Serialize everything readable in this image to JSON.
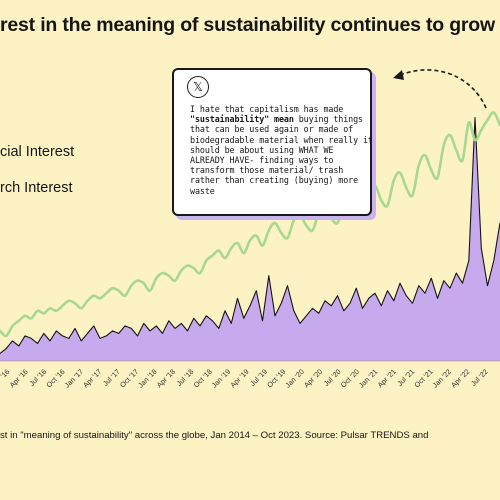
{
  "title": "rest in the meaning of sustainability continues to grow",
  "legend": {
    "social": "cial Interest",
    "search": "rch Interest"
  },
  "tweet": {
    "icon": "x-logo-icon",
    "line1": "I hate that capitalism has made",
    "bold_phrase": "\"sustainability\" mean",
    "line2_rest": " buying things",
    "line3": "that can be used again or made of",
    "line4": "biodegradable material when really it",
    "line5": "should be about using WHAT WE",
    "line6": "ALREADY HAVE- finding ways to",
    "line7": "transform those material/ trash",
    "line8": "rather than creating (buying) more",
    "line9": "waste"
  },
  "caption": {
    "line1": "st in \"meaning of sustainability\" across the globe, Jan 2014 – Oct 2023. Source: Pulsar TRENDS and"
  },
  "colors": {
    "background": "#fdf2c4",
    "social_line": "#a6d98f",
    "search_fill": "#c6aaed",
    "search_line": "#141414"
  },
  "chart_data": {
    "type": "area",
    "xlabel": "",
    "ylabel": "",
    "x_tick_labels": [
      "'16",
      "Apr '16",
      "Jul '16",
      "Oct '16",
      "Jan '17",
      "Apr '17",
      "Jul '17",
      "Oct '17",
      "Jan '18",
      "Apr '18",
      "Jul '18",
      "Oct '18",
      "Jan '19",
      "Apr '19",
      "Jul '19",
      "Oct '19",
      "Jan '20",
      "Apr '20",
      "Jul '20",
      "Oct '20",
      "Jan '21",
      "Apr '21",
      "Jul '21",
      "Oct '21",
      "Jan '22",
      "Apr '22",
      "Jul '22"
    ],
    "x_range": [
      0,
      80
    ],
    "y_range": [
      0,
      100
    ],
    "series": [
      {
        "name": "Social Interest",
        "values": [
          12,
          10,
          14,
          16,
          18,
          17,
          20,
          19,
          21,
          20,
          22,
          24,
          23,
          21,
          24,
          26,
          25,
          27,
          29,
          28,
          26,
          30,
          32,
          31,
          28,
          33,
          35,
          34,
          32,
          36,
          38,
          37,
          35,
          40,
          42,
          44,
          41,
          45,
          47,
          43,
          48,
          50,
          46,
          52,
          55,
          51,
          49,
          56,
          58,
          54,
          52,
          59,
          61,
          57,
          55,
          63,
          66,
          60,
          58,
          67,
          70,
          64,
          62,
          72,
          75,
          69,
          66,
          78,
          82,
          76,
          73,
          86,
          90,
          84,
          80,
          95,
          88,
          92,
          96,
          99,
          94
        ]
      },
      {
        "name": "Search Interest",
        "values": [
          3,
          5,
          8,
          6,
          10,
          9,
          7,
          11,
          8,
          12,
          10,
          9,
          13,
          8,
          11,
          14,
          9,
          10,
          12,
          11,
          14,
          13,
          10,
          15,
          12,
          14,
          11,
          16,
          13,
          15,
          12,
          17,
          14,
          18,
          16,
          13,
          20,
          15,
          25,
          17,
          22,
          28,
          16,
          34,
          18,
          23,
          30,
          20,
          15,
          18,
          21,
          19,
          24,
          22,
          26,
          20,
          23,
          29,
          21,
          25,
          27,
          22,
          28,
          24,
          31,
          26,
          23,
          30,
          27,
          33,
          25,
          32,
          29,
          35,
          31,
          40,
          97,
          45,
          30,
          40,
          55
        ]
      }
    ]
  }
}
